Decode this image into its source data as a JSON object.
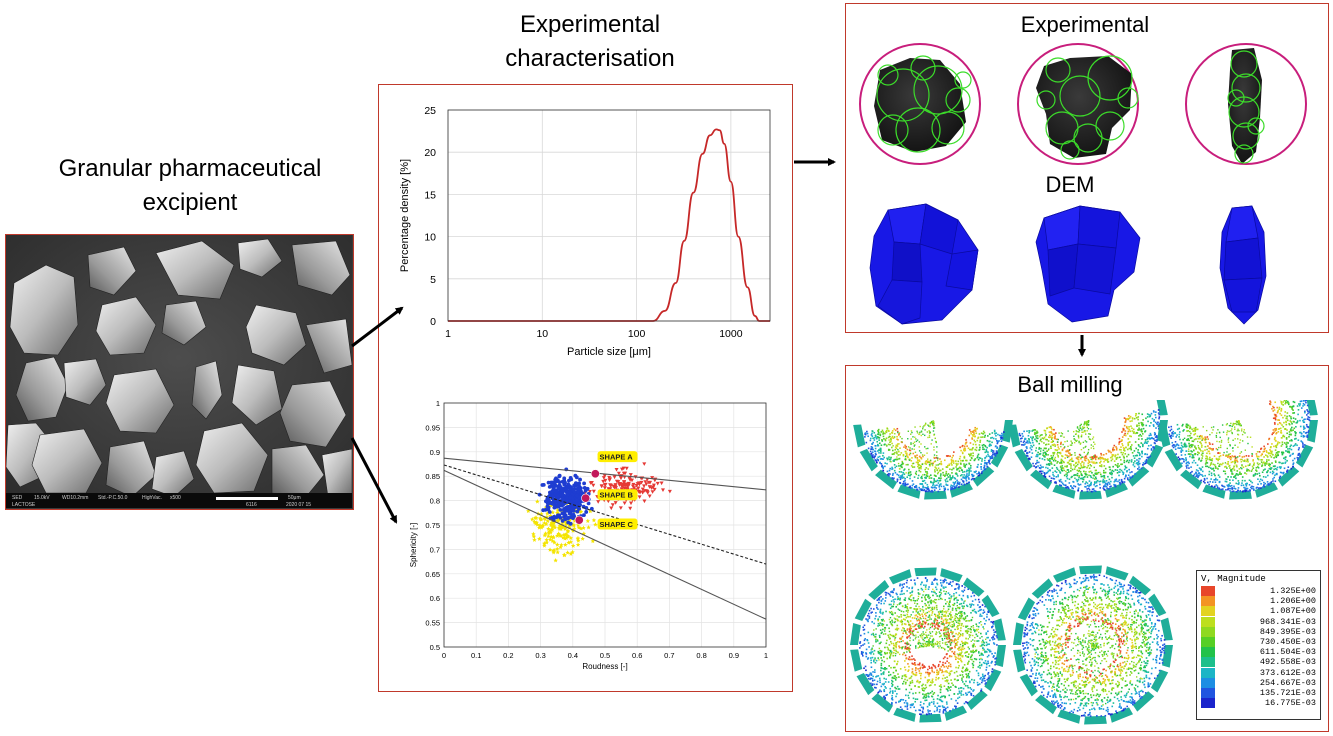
{
  "left": {
    "title_line1": "Granular pharmaceutical",
    "title_line2": "excipient",
    "sem_footer": [
      "SED",
      "15.0kV",
      "WD10.2mm",
      "Std.-P.C.50.0",
      "HighVac.",
      "x500",
      "50μm",
      "6116",
      "2020 07 15"
    ],
    "sem_label": "LACTOSE"
  },
  "center": {
    "title_line1": "Experimental",
    "title_line2": "characterisation",
    "psd_chart": {
      "type": "line",
      "xlabel": "Particle size [μm]",
      "ylabel": "Percentage density [%]",
      "x_scale": "log",
      "xlim": [
        1,
        2600
      ],
      "ylim": [
        0,
        25
      ],
      "x_ticks": [
        "1",
        "10",
        "100",
        "1000"
      ],
      "y_ticks": [
        "0",
        "5",
        "10",
        "15",
        "20",
        "25"
      ],
      "series_color": "#c62828",
      "x": [
        1,
        150,
        200,
        260,
        320,
        400,
        500,
        600,
        700,
        760,
        850,
        1000,
        1200,
        1500,
        1800,
        2000,
        2600
      ],
      "y": [
        0,
        0,
        1.2,
        4.5,
        9.5,
        15.2,
        19.8,
        22.0,
        22.7,
        22.6,
        21.0,
        16.5,
        10.0,
        4.0,
        0.6,
        0,
        0
      ]
    },
    "shape_chart": {
      "type": "scatter",
      "xlabel": "Roudness [-]",
      "ylabel": "Sphericity [-]",
      "xlim": [
        0,
        1
      ],
      "ylim": [
        0.5,
        1
      ],
      "x_ticks": [
        "0",
        "0.1",
        "0.2",
        "0.3",
        "0.4",
        "0.5",
        "0.6",
        "0.7",
        "0.8",
        "0.9",
        "1"
      ],
      "y_ticks": [
        "0.5",
        "0.55",
        "0.6",
        "0.65",
        "0.7",
        "0.75",
        "0.8",
        "0.85",
        "0.9",
        "0.95",
        "1"
      ],
      "colors": {
        "red": "#e53935",
        "blue": "#1e3dd1",
        "yellow": "#f4e400",
        "magenta": "#c2185b",
        "label_bg": "#ffee00"
      },
      "lines": [
        {
          "style": "solid",
          "color": "#555555",
          "x": [
            0,
            1
          ],
          "y": [
            0.887,
            0.822
          ]
        },
        {
          "style": "dashed",
          "color": "#222222",
          "x": [
            0,
            1
          ],
          "y": [
            0.873,
            0.67
          ]
        },
        {
          "style": "solid",
          "color": "#555555",
          "x": [
            0,
            1
          ],
          "y": [
            0.862,
            0.557
          ]
        }
      ],
      "labels": [
        {
          "text": "SHAPE A",
          "x": 0.48,
          "y": 0.889
        },
        {
          "text": "SHAPE B",
          "x": 0.48,
          "y": 0.811
        },
        {
          "text": "SHAPE C",
          "x": 0.48,
          "y": 0.751
        }
      ],
      "highlight_points": [
        {
          "x": 0.47,
          "y": 0.855
        },
        {
          "x": 0.44,
          "y": 0.805
        },
        {
          "x": 0.42,
          "y": 0.76
        }
      ]
    }
  },
  "right_top": {
    "title": "Experimental",
    "dem_label": "DEM"
  },
  "right_bottom": {
    "title": "Ball milling",
    "legend": {
      "title": "V, Magnitude",
      "values": [
        "1.325E+00",
        "1.206E+00",
        "1.087E+00",
        "968.341E-03",
        "849.395E-03",
        "730.450E-03",
        "611.504E-03",
        "492.558E-03",
        "373.612E-03",
        "254.667E-03",
        "135.721E-03",
        "16.775E-03"
      ],
      "colors": [
        "#e8462a",
        "#f39423",
        "#e3d320",
        "#bddf1e",
        "#8fd920",
        "#56cf25",
        "#22c24a",
        "#1cbf8c",
        "#1cb5c6",
        "#1d8ee3",
        "#2055e0",
        "#1a24cc"
      ]
    }
  },
  "colors": {
    "box_border": "#c0392b",
    "ring": "#c81e7c",
    "dem_blue": "#1212e8",
    "circle_green": "#3cdc2a"
  }
}
